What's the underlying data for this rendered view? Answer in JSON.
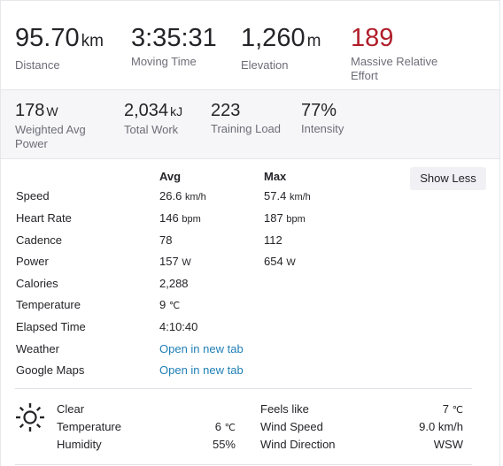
{
  "top_stats": [
    {
      "value": "95.70",
      "unit": "km",
      "label": "Distance"
    },
    {
      "value": "3:35:31",
      "unit": "",
      "label": "Moving Time"
    },
    {
      "value": "1,260",
      "unit": "m",
      "label": "Elevation"
    },
    {
      "value": "189",
      "unit": "",
      "label": "Massive Relative Effort"
    }
  ],
  "secondary_stats": [
    {
      "value": "178",
      "unit": "W",
      "label": "Weighted Avg Power"
    },
    {
      "value": "2,034",
      "unit": "kJ",
      "label": "Total Work"
    },
    {
      "value": "223",
      "unit": "",
      "label": "Training Load"
    },
    {
      "value": "77%",
      "unit": "",
      "label": "Intensity"
    }
  ],
  "metrics": {
    "avg_header": "Avg",
    "max_header": "Max",
    "show_less_label": "Show Less",
    "rows": [
      {
        "name": "Speed",
        "avg": "26.6",
        "avg_unit": "km/h",
        "max": "57.4",
        "max_unit": "km/h"
      },
      {
        "name": "Heart Rate",
        "avg": "146",
        "avg_unit": "bpm",
        "max": "187",
        "max_unit": "bpm"
      },
      {
        "name": "Cadence",
        "avg": "78",
        "avg_unit": "",
        "max": "112",
        "max_unit": ""
      },
      {
        "name": "Power",
        "avg": "157",
        "avg_unit": "W",
        "max": "654",
        "max_unit": "W"
      },
      {
        "name": "Calories",
        "avg": "2,288",
        "avg_unit": "",
        "max": "",
        "max_unit": ""
      },
      {
        "name": "Temperature",
        "avg": "9",
        "avg_unit": "℃",
        "max": "",
        "max_unit": ""
      },
      {
        "name": "Elapsed Time",
        "avg": "4:10:40",
        "avg_unit": "",
        "max": "",
        "max_unit": ""
      }
    ],
    "links": [
      {
        "name": "Weather",
        "link": "Open in new tab"
      },
      {
        "name": "Google Maps",
        "link": "Open in new tab"
      }
    ]
  },
  "weather": {
    "icon": "sun-icon",
    "condition": "Clear",
    "temperature_label": "Temperature",
    "temperature_value": "6",
    "temperature_unit": "℃",
    "humidity_label": "Humidity",
    "humidity_value": "55%",
    "feels_like_label": "Feels like",
    "feels_like_value": "7",
    "feels_like_unit": "℃",
    "wind_speed_label": "Wind Speed",
    "wind_speed_value": "9.0 km/h",
    "wind_direction_label": "Wind Direction",
    "wind_direction_value": "WSW"
  },
  "colors": {
    "relative_effort": "#b01e2a",
    "link": "#1f7fb5",
    "secondary_bg": "#f6f6f8"
  }
}
